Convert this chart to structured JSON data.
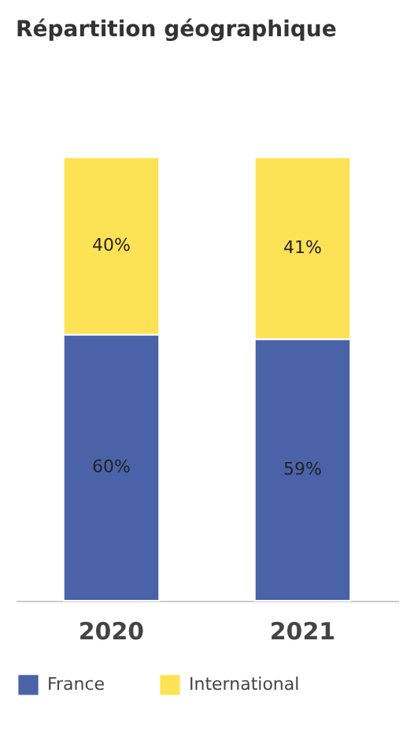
{
  "chart_data": {
    "type": "bar",
    "title": "Répartition géographique",
    "categories": [
      "2020",
      "2021"
    ],
    "stacked": true,
    "legend": "bottom",
    "tick_labels": "x",
    "series": [
      {
        "name": "France",
        "color": "#4a63a8",
        "values": [
          60,
          59
        ],
        "value_labels": [
          "60%",
          "59%"
        ]
      },
      {
        "name": "International",
        "color": "#fde256",
        "values": [
          40,
          41
        ],
        "value_labels": [
          "40%",
          "41%"
        ]
      }
    ]
  }
}
